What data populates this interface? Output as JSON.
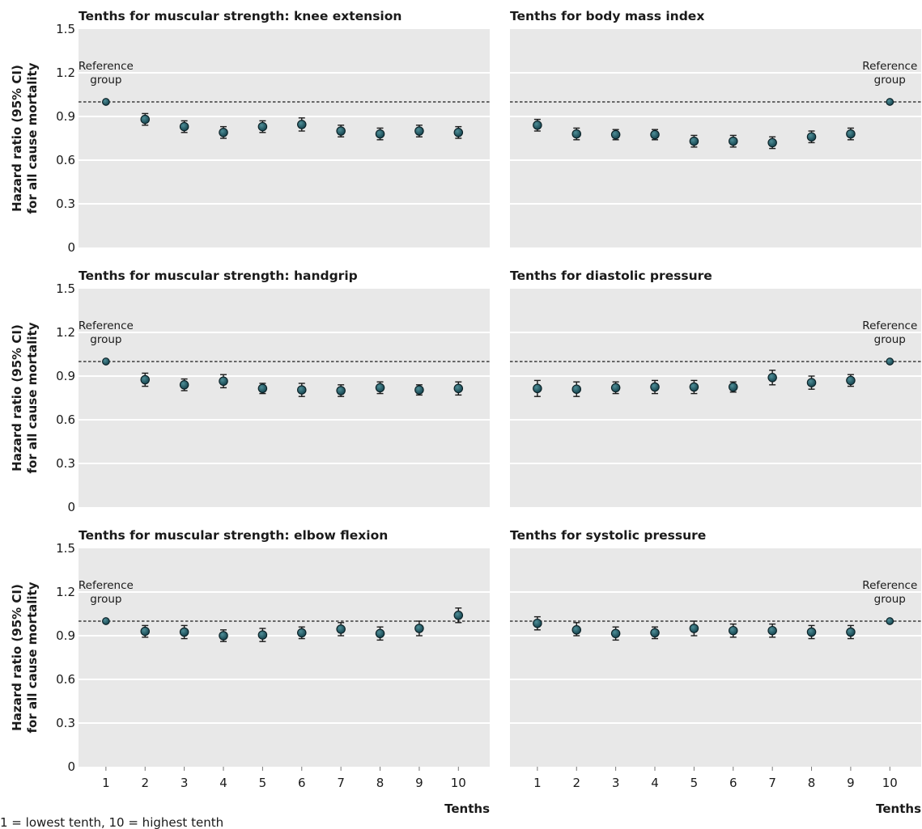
{
  "figure": {
    "ylabel_line1": "Hazard ratio (95% CI)",
    "ylabel_line2": "for all cause mortality",
    "xlabel": "Tenths",
    "footnote": "1 = lowest tenth, 10 = highest tenth",
    "reference_label_line1": "Reference",
    "reference_label_line2": "group",
    "ytick_labels": [
      "0",
      "0.3",
      "0.6",
      "0.9",
      "1.2",
      "1.5"
    ],
    "colors": {
      "panel_background": "#e8e8e8",
      "gridline": "#ffffff",
      "marker": "#123f4a",
      "marker_highlight": "#4e8e97",
      "reference_line": "#1a1a1a"
    }
  },
  "chart_data": [
    {
      "type": "scatter",
      "title": "Tenths for muscular strength: knee extension",
      "x": [
        1,
        2,
        3,
        4,
        5,
        6,
        7,
        8,
        9,
        10
      ],
      "series": [
        {
          "values": [
            1.0,
            0.88,
            0.83,
            0.79,
            0.83,
            0.845,
            0.8,
            0.78,
            0.8,
            0.79
          ],
          "ci_lower": [
            1.0,
            0.84,
            0.79,
            0.75,
            0.79,
            0.8,
            0.76,
            0.74,
            0.76,
            0.75
          ],
          "ci_upper": [
            1.0,
            0.92,
            0.87,
            0.83,
            0.87,
            0.89,
            0.84,
            0.82,
            0.84,
            0.83
          ]
        }
      ],
      "reference_x": 1,
      "reference_line_y": 1.0,
      "xlabel": "",
      "ylabel": "Hazard ratio (95% CI) for all cause mortality",
      "ylim": [
        0,
        1.5
      ],
      "xlim": [
        0.3,
        10.8
      ],
      "grid": true
    },
    {
      "type": "scatter",
      "title": "Tenths for body mass index",
      "x": [
        1,
        2,
        3,
        4,
        5,
        6,
        7,
        8,
        9,
        10
      ],
      "series": [
        {
          "values": [
            0.84,
            0.78,
            0.775,
            0.775,
            0.73,
            0.73,
            0.72,
            0.76,
            0.78,
            1.0
          ],
          "ci_lower": [
            0.8,
            0.74,
            0.74,
            0.74,
            0.69,
            0.69,
            0.68,
            0.72,
            0.74,
            1.0
          ],
          "ci_upper": [
            0.88,
            0.82,
            0.81,
            0.81,
            0.77,
            0.77,
            0.76,
            0.8,
            0.82,
            1.0
          ]
        }
      ],
      "reference_x": 10,
      "reference_line_y": 1.0,
      "xlabel": "",
      "ylabel": "",
      "ylim": [
        0,
        1.5
      ],
      "xlim": [
        0.3,
        10.8
      ],
      "grid": true
    },
    {
      "type": "scatter",
      "title": "Tenths for muscular strength: handgrip",
      "x": [
        1,
        2,
        3,
        4,
        5,
        6,
        7,
        8,
        9,
        10
      ],
      "series": [
        {
          "values": [
            1.0,
            0.875,
            0.84,
            0.865,
            0.815,
            0.805,
            0.8,
            0.82,
            0.805,
            0.815
          ],
          "ci_lower": [
            1.0,
            0.83,
            0.8,
            0.82,
            0.78,
            0.76,
            0.76,
            0.78,
            0.77,
            0.77
          ],
          "ci_upper": [
            1.0,
            0.92,
            0.88,
            0.91,
            0.85,
            0.85,
            0.84,
            0.86,
            0.84,
            0.86
          ]
        }
      ],
      "reference_x": 1,
      "reference_line_y": 1.0,
      "xlabel": "",
      "ylabel": "Hazard ratio (95% CI) for all cause mortality",
      "ylim": [
        0,
        1.5
      ],
      "xlim": [
        0.3,
        10.8
      ],
      "grid": true
    },
    {
      "type": "scatter",
      "title": "Tenths for diastolic pressure",
      "x": [
        1,
        2,
        3,
        4,
        5,
        6,
        7,
        8,
        9,
        10
      ],
      "series": [
        {
          "values": [
            0.815,
            0.81,
            0.82,
            0.825,
            0.825,
            0.825,
            0.89,
            0.855,
            0.87,
            1.0
          ],
          "ci_lower": [
            0.76,
            0.76,
            0.78,
            0.78,
            0.78,
            0.79,
            0.84,
            0.81,
            0.83,
            1.0
          ],
          "ci_upper": [
            0.87,
            0.86,
            0.86,
            0.87,
            0.87,
            0.86,
            0.94,
            0.9,
            0.91,
            1.0
          ]
        }
      ],
      "reference_x": 10,
      "reference_line_y": 1.0,
      "xlabel": "",
      "ylabel": "",
      "ylim": [
        0,
        1.5
      ],
      "xlim": [
        0.3,
        10.8
      ],
      "grid": true
    },
    {
      "type": "scatter",
      "title": "Tenths for muscular strength: elbow flexion",
      "x": [
        1,
        2,
        3,
        4,
        5,
        6,
        7,
        8,
        9,
        10
      ],
      "series": [
        {
          "values": [
            1.0,
            0.93,
            0.925,
            0.9,
            0.905,
            0.92,
            0.945,
            0.915,
            0.95,
            1.04
          ],
          "ci_lower": [
            1.0,
            0.89,
            0.88,
            0.86,
            0.86,
            0.88,
            0.9,
            0.87,
            0.9,
            0.99
          ],
          "ci_upper": [
            1.0,
            0.97,
            0.97,
            0.94,
            0.95,
            0.96,
            0.99,
            0.96,
            1.0,
            1.09
          ]
        }
      ],
      "reference_x": 1,
      "reference_line_y": 1.0,
      "xlabel": "Tenths",
      "ylabel": "Hazard ratio (95% CI) for all cause mortality",
      "ylim": [
        0,
        1.5
      ],
      "xlim": [
        0.3,
        10.8
      ],
      "grid": true
    },
    {
      "type": "scatter",
      "title": "Tenths for systolic pressure",
      "x": [
        1,
        2,
        3,
        4,
        5,
        6,
        7,
        8,
        9,
        10
      ],
      "series": [
        {
          "values": [
            0.985,
            0.94,
            0.915,
            0.92,
            0.95,
            0.935,
            0.935,
            0.925,
            0.925,
            1.0
          ],
          "ci_lower": [
            0.94,
            0.9,
            0.87,
            0.88,
            0.9,
            0.89,
            0.89,
            0.88,
            0.88,
            1.0
          ],
          "ci_upper": [
            1.03,
            0.99,
            0.96,
            0.96,
            1.0,
            0.98,
            0.98,
            0.97,
            0.97,
            1.0
          ]
        }
      ],
      "reference_x": 10,
      "reference_line_y": 1.0,
      "xlabel": "Tenths",
      "ylabel": "",
      "ylim": [
        0,
        1.5
      ],
      "xlim": [
        0.3,
        10.8
      ],
      "grid": true
    }
  ]
}
